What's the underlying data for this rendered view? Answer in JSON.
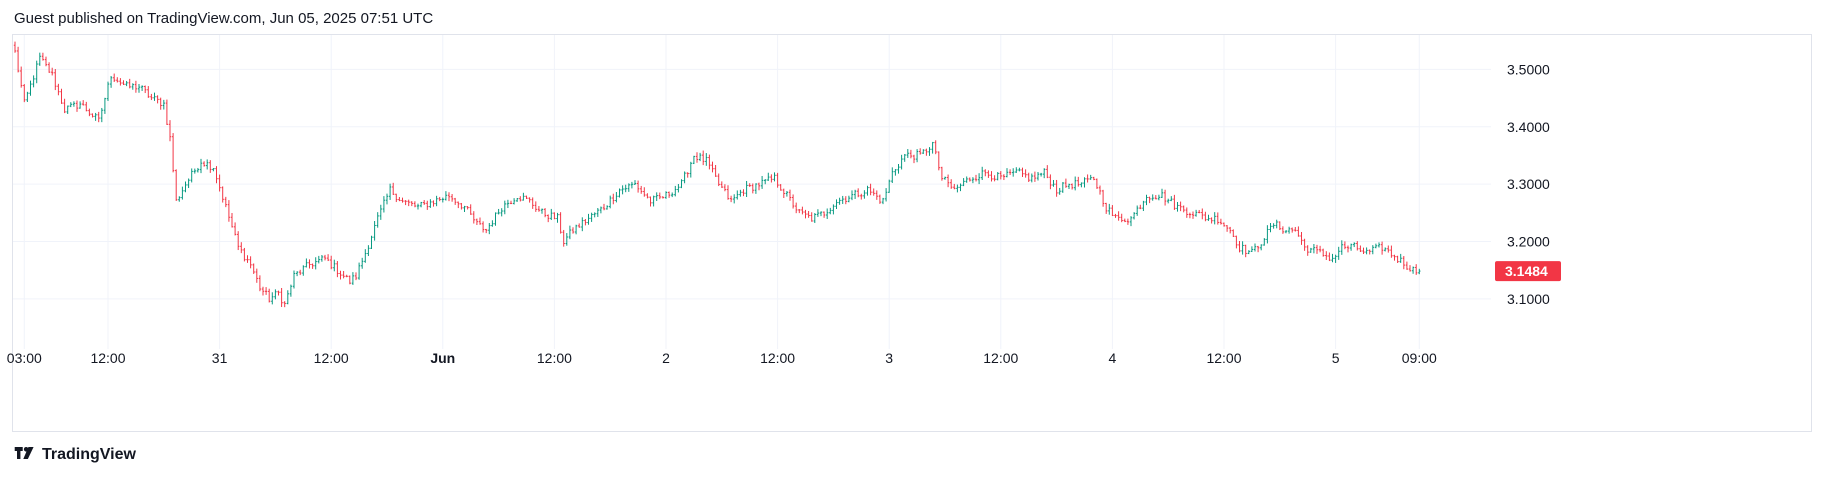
{
  "header": {
    "text": "Guest published on TradingView.com, Jun 05, 2025 07:51 UTC"
  },
  "footer": {
    "brand": "TradingView",
    "logo_icon": "tradingview-logo-icon"
  },
  "colors": {
    "up": "#089981",
    "down": "#f23645",
    "grid": "#f0f3fa",
    "border": "#e0e3eb",
    "text": "#131722"
  },
  "chart_data": {
    "type": "ohlc",
    "title": "",
    "ylim": [
      3.03,
      3.56
    ],
    "y_ticks": [
      "3.5000",
      "3.4000",
      "3.3000",
      "3.2000",
      "3.1000"
    ],
    "y_tick_values": [
      3.5,
      3.4,
      3.3,
      3.2,
      3.1
    ],
    "last_price": "3.1484",
    "last_price_value": 3.1484,
    "x_ticks": [
      {
        "label": "03:00",
        "bold": false,
        "bar": 3
      },
      {
        "label": "12:00",
        "bold": false,
        "bar": 30
      },
      {
        "label": "31",
        "bold": false,
        "bar": 66
      },
      {
        "label": "12:00",
        "bold": false,
        "bar": 102
      },
      {
        "label": "Jun",
        "bold": true,
        "bar": 138
      },
      {
        "label": "12:00",
        "bold": false,
        "bar": 174
      },
      {
        "label": "2",
        "bold": false,
        "bar": 210
      },
      {
        "label": "12:00",
        "bold": false,
        "bar": 246
      },
      {
        "label": "3",
        "bold": false,
        "bar": 282
      },
      {
        "label": "12:00",
        "bold": false,
        "bar": 318
      },
      {
        "label": "4",
        "bold": false,
        "bar": 354
      },
      {
        "label": "12:00",
        "bold": false,
        "bar": 390
      },
      {
        "label": "5",
        "bold": false,
        "bar": 426
      },
      {
        "label": "09:00",
        "bold": false,
        "bar": 453
      }
    ],
    "anchors": [
      [
        0,
        3.53
      ],
      [
        3,
        3.44
      ],
      [
        8,
        3.52
      ],
      [
        12,
        3.49
      ],
      [
        16,
        3.43
      ],
      [
        21,
        3.44
      ],
      [
        27,
        3.41
      ],
      [
        31,
        3.49
      ],
      [
        36,
        3.47
      ],
      [
        40,
        3.47
      ],
      [
        44,
        3.45
      ],
      [
        48,
        3.44
      ],
      [
        50,
        3.38
      ],
      [
        52,
        3.27
      ],
      [
        55,
        3.3
      ],
      [
        60,
        3.34
      ],
      [
        64,
        3.33
      ],
      [
        68,
        3.26
      ],
      [
        72,
        3.19
      ],
      [
        76,
        3.16
      ],
      [
        79,
        3.12
      ],
      [
        82,
        3.1
      ],
      [
        85,
        3.11
      ],
      [
        87,
        3.09
      ],
      [
        90,
        3.14
      ],
      [
        95,
        3.16
      ],
      [
        100,
        3.17
      ],
      [
        104,
        3.15
      ],
      [
        108,
        3.13
      ],
      [
        110,
        3.14
      ],
      [
        113,
        3.18
      ],
      [
        117,
        3.24
      ],
      [
        121,
        3.29
      ],
      [
        125,
        3.27
      ],
      [
        130,
        3.26
      ],
      [
        135,
        3.27
      ],
      [
        140,
        3.28
      ],
      [
        145,
        3.26
      ],
      [
        149,
        3.23
      ],
      [
        152,
        3.22
      ],
      [
        157,
        3.26
      ],
      [
        162,
        3.28
      ],
      [
        166,
        3.27
      ],
      [
        170,
        3.25
      ],
      [
        175,
        3.24
      ],
      [
        177,
        3.2
      ],
      [
        180,
        3.22
      ],
      [
        185,
        3.24
      ],
      [
        190,
        3.26
      ],
      [
        195,
        3.29
      ],
      [
        200,
        3.3
      ],
      [
        205,
        3.27
      ],
      [
        210,
        3.28
      ],
      [
        215,
        3.3
      ],
      [
        219,
        3.35
      ],
      [
        223,
        3.34
      ],
      [
        227,
        3.3
      ],
      [
        231,
        3.27
      ],
      [
        235,
        3.29
      ],
      [
        240,
        3.3
      ],
      [
        245,
        3.31
      ],
      [
        249,
        3.28
      ],
      [
        253,
        3.25
      ],
      [
        257,
        3.24
      ],
      [
        261,
        3.25
      ],
      [
        265,
        3.27
      ],
      [
        270,
        3.28
      ],
      [
        275,
        3.29
      ],
      [
        280,
        3.27
      ],
      [
        283,
        3.32
      ],
      [
        287,
        3.35
      ],
      [
        292,
        3.35
      ],
      [
        296,
        3.37
      ],
      [
        299,
        3.31
      ],
      [
        303,
        3.29
      ],
      [
        308,
        3.31
      ],
      [
        313,
        3.32
      ],
      [
        318,
        3.31
      ],
      [
        323,
        3.32
      ],
      [
        328,
        3.31
      ],
      [
        332,
        3.32
      ],
      [
        336,
        3.29
      ],
      [
        340,
        3.3
      ],
      [
        344,
        3.3
      ],
      [
        348,
        3.31
      ],
      [
        352,
        3.26
      ],
      [
        355,
        3.24
      ],
      [
        360,
        3.24
      ],
      [
        365,
        3.28
      ],
      [
        370,
        3.28
      ],
      [
        375,
        3.26
      ],
      [
        380,
        3.25
      ],
      [
        385,
        3.24
      ],
      [
        388,
        3.24
      ],
      [
        392,
        3.22
      ],
      [
        395,
        3.19
      ],
      [
        399,
        3.18
      ],
      [
        402,
        3.2
      ],
      [
        406,
        3.23
      ],
      [
        410,
        3.22
      ],
      [
        413,
        3.22
      ],
      [
        416,
        3.19
      ],
      [
        421,
        3.18
      ],
      [
        425,
        3.17
      ],
      [
        428,
        3.19
      ],
      [
        432,
        3.19
      ],
      [
        436,
        3.18
      ],
      [
        441,
        3.19
      ],
      [
        446,
        3.17
      ],
      [
        451,
        3.15
      ]
    ]
  }
}
